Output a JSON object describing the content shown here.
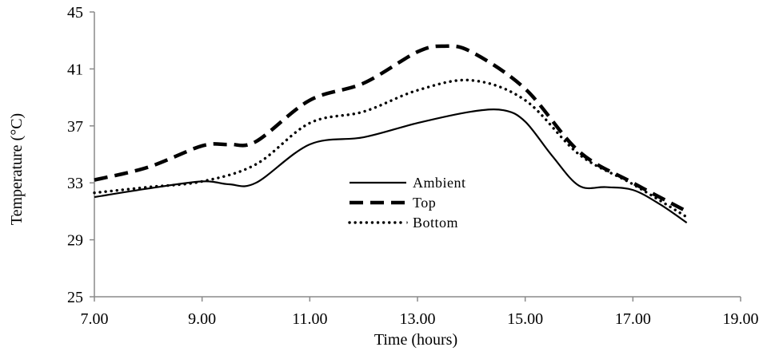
{
  "chart_data": {
    "type": "line",
    "title": "",
    "xlabel": "Time (hours)",
    "ylabel": "Temperature (°C)",
    "xlim": [
      7,
      19
    ],
    "ylim": [
      25,
      45
    ],
    "x_ticks": [
      7,
      9,
      11,
      13,
      15,
      17,
      19
    ],
    "x_tick_labels": [
      "7.00",
      "9.00",
      "11.00",
      "13.00",
      "15.00",
      "17.00",
      "19.00"
    ],
    "y_ticks": [
      25,
      29,
      33,
      37,
      41,
      45
    ],
    "y_tick_labels": [
      "25",
      "29",
      "33",
      "37",
      "41",
      "45"
    ],
    "grid": false,
    "legend_position": "center",
    "series": [
      {
        "name": "Ambient",
        "style": "solid",
        "color": "#000000",
        "x": [
          7,
          8,
          9,
          9.5,
          10,
          11,
          12,
          13,
          14,
          14.6,
          15,
          15.5,
          16,
          16.5,
          17,
          17.5,
          18
        ],
        "y": [
          32.0,
          32.6,
          33.1,
          32.9,
          33.0,
          35.7,
          36.2,
          37.2,
          38.0,
          38.1,
          37.3,
          34.9,
          32.8,
          32.7,
          32.5,
          31.5,
          30.2
        ]
      },
      {
        "name": "Top",
        "style": "dashed",
        "color": "#000000",
        "x": [
          7,
          8,
          9,
          9.5,
          10,
          11,
          12,
          13,
          13.5,
          14,
          15,
          16,
          17,
          18
        ],
        "y": [
          33.2,
          34.1,
          35.6,
          35.7,
          35.9,
          38.8,
          40.0,
          42.2,
          42.6,
          42.2,
          39.6,
          35.2,
          33.0,
          31.0
        ]
      },
      {
        "name": "Bottom",
        "style": "dotted",
        "color": "#000000",
        "x": [
          7,
          8,
          9,
          10,
          11,
          12,
          13,
          14,
          15,
          16,
          17,
          18
        ],
        "y": [
          32.3,
          32.7,
          33.1,
          34.3,
          37.2,
          38.0,
          39.5,
          40.2,
          38.8,
          35.0,
          32.9,
          30.6
        ]
      }
    ]
  }
}
